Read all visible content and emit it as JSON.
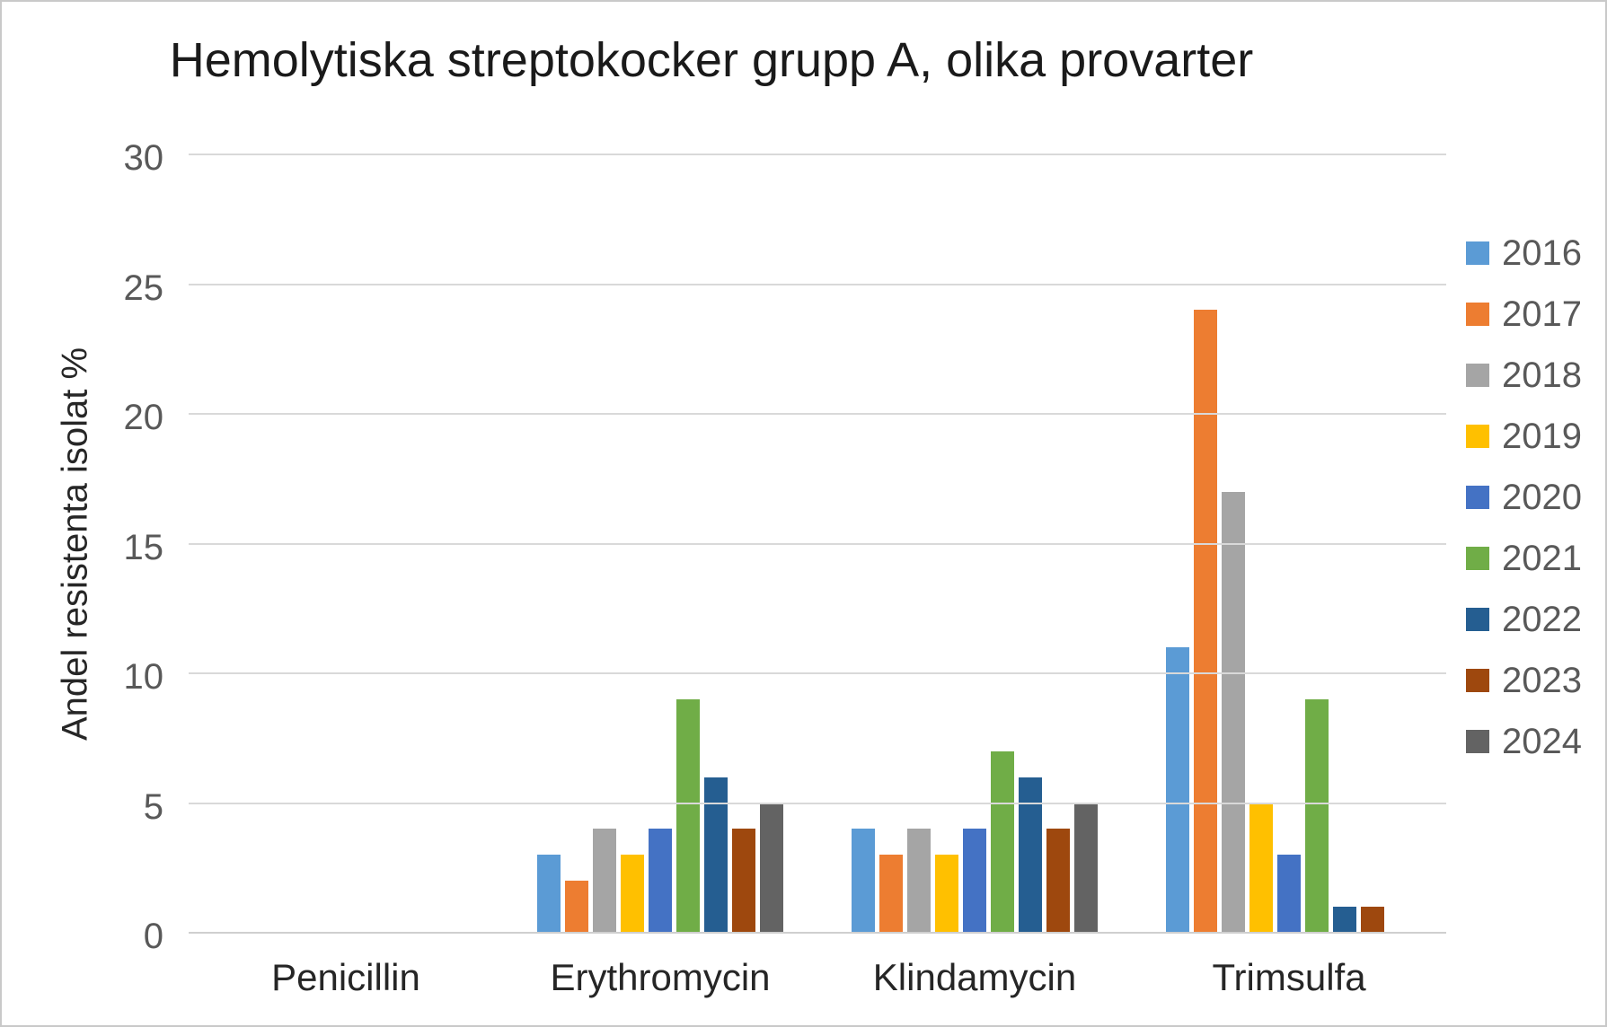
{
  "chart_data": {
    "type": "bar",
    "title": "Hemolytiska streptokocker grupp A, olika provarter",
    "ylabel": "Andel resistenta isolat %",
    "xlabel": "",
    "categories": [
      "Penicillin",
      "Erythromycin",
      "Klindamycin",
      "Trimsulfa"
    ],
    "series": [
      {
        "name": "2016",
        "color": "#5B9BD5",
        "values": [
          0,
          3,
          4,
          11
        ]
      },
      {
        "name": "2017",
        "color": "#ED7D31",
        "values": [
          0,
          2,
          3,
          24
        ]
      },
      {
        "name": "2018",
        "color": "#A5A5A5",
        "values": [
          0,
          4,
          4,
          17
        ]
      },
      {
        "name": "2019",
        "color": "#FFC000",
        "values": [
          0,
          3,
          3,
          5
        ]
      },
      {
        "name": "2020",
        "color": "#4472C4",
        "values": [
          0,
          4,
          4,
          3
        ]
      },
      {
        "name": "2021",
        "color": "#70AD47",
        "values": [
          0,
          9,
          7,
          9
        ]
      },
      {
        "name": "2022",
        "color": "#255E91",
        "values": [
          0,
          6,
          6,
          1
        ]
      },
      {
        "name": "2023",
        "color": "#9E480E",
        "values": [
          0,
          4,
          4,
          1
        ]
      },
      {
        "name": "2024",
        "color": "#636363",
        "values": [
          0,
          5,
          5,
          0
        ]
      }
    ],
    "ylim": [
      0,
      30
    ],
    "ytick_step": 5,
    "grid": true,
    "legend_position": "right"
  }
}
